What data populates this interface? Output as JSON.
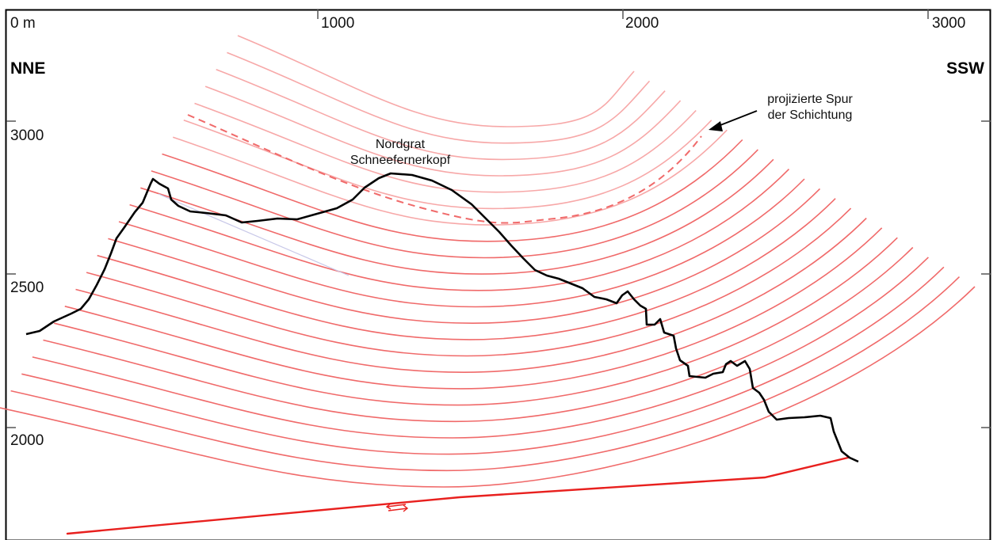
{
  "x_axis": {
    "ticks": [
      {
        "value": 0,
        "label": "0 m"
      },
      {
        "value": 1000,
        "label": "1000"
      },
      {
        "value": 2000,
        "label": "2000"
      },
      {
        "value": 3000,
        "label": "3000"
      }
    ]
  },
  "y_axis": {
    "ticks": [
      {
        "value": 3000,
        "label": "3000"
      },
      {
        "value": 2500,
        "label": "2500"
      },
      {
        "value": 2000,
        "label": "2000"
      }
    ]
  },
  "directions": {
    "left": "NNE",
    "right": "SSW"
  },
  "annotations": {
    "peak_line1": "Nordgrat",
    "peak_line2": "Schneefernerkopf",
    "trace_line1": "projizierte Spur",
    "trace_line2": "der Schichtung"
  },
  "colors": {
    "frame": "#000000",
    "topography": "#000000",
    "bedding_strong": "#f06a6a",
    "bedding_faint": "#f7a8a8",
    "fault": "#e8201e",
    "ticks": "#555555"
  }
}
